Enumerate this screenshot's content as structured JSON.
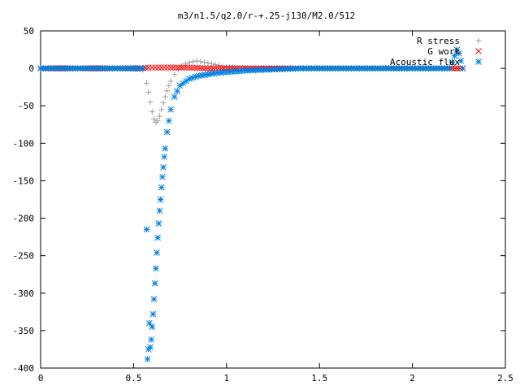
{
  "chart_data": {
    "type": "scatter",
    "title": "m3/n1.5/q2.0/r-+.25-j130/M2.0/512",
    "xlabel": "",
    "ylabel": "",
    "xlim": [
      0,
      2.5
    ],
    "ylim": [
      -400,
      50
    ],
    "xticks": [
      "0",
      "0.5",
      "1",
      "1.5",
      "2",
      "2.5"
    ],
    "yticks": [
      "50",
      "0",
      "-50",
      "-100",
      "-150",
      "-200",
      "-250",
      "-300",
      "-350",
      "-400"
    ],
    "xtick_values": [
      0,
      0.5,
      1,
      1.5,
      2,
      2.5
    ],
    "ytick_values": [
      50,
      0,
      -50,
      -100,
      -150,
      -200,
      -250,
      -300,
      -350,
      -400
    ],
    "grid": false,
    "legend_position": "top-right",
    "series": [
      {
        "name": "R stress",
        "marker": "+",
        "color": "#a0a0a0",
        "x": [
          0.0,
          0.1,
          0.2,
          0.3,
          0.4,
          0.5,
          0.55,
          0.57,
          0.58,
          0.59,
          0.6,
          0.61,
          0.62,
          0.63,
          0.64,
          0.65,
          0.66,
          0.67,
          0.68,
          0.69,
          0.7,
          0.72,
          0.74,
          0.76,
          0.78,
          0.8,
          0.82,
          0.84,
          0.86,
          0.88,
          0.9,
          0.92,
          0.94,
          0.96,
          0.98,
          1.0,
          1.05,
          1.1,
          1.2,
          1.3,
          1.4,
          1.5,
          1.6,
          1.7,
          1.8,
          1.9,
          2.0,
          2.1,
          2.2,
          2.25
        ],
        "y": [
          0,
          0,
          0,
          0,
          0,
          0,
          -2,
          -20,
          -32,
          -45,
          -58,
          -68,
          -72,
          -70,
          -64,
          -55,
          -46,
          -38,
          -30,
          -23,
          -17,
          -8,
          -2,
          3,
          6,
          8,
          9,
          10,
          9,
          8,
          7,
          6,
          5,
          4,
          3,
          2,
          1,
          0,
          0,
          0,
          0,
          0,
          0,
          0,
          0,
          0,
          0,
          0,
          0,
          0
        ]
      },
      {
        "name": "G work",
        "marker": "x",
        "color": "#ff0000",
        "x": [
          0.0,
          0.2,
          0.4,
          0.55,
          0.58,
          0.6,
          0.65,
          0.7,
          0.8,
          0.9,
          1.0,
          1.1,
          1.2,
          1.3,
          1.4,
          1.5,
          1.6,
          1.7,
          1.8,
          1.9,
          2.0,
          2.1,
          2.2,
          2.27
        ],
        "y": [
          0,
          0,
          0,
          0,
          1,
          1,
          1,
          1,
          1,
          0,
          0,
          0,
          0,
          0,
          0,
          0,
          0,
          0,
          0,
          0,
          0,
          0,
          0,
          0
        ]
      },
      {
        "name": "Acoustic flux",
        "marker": "*",
        "color": "#0080e0",
        "x": [
          0.0,
          0.1,
          0.2,
          0.3,
          0.4,
          0.5,
          0.55,
          0.57,
          0.575,
          0.58,
          0.585,
          0.59,
          0.595,
          0.6,
          0.605,
          0.61,
          0.615,
          0.62,
          0.625,
          0.63,
          0.635,
          0.64,
          0.645,
          0.65,
          0.655,
          0.66,
          0.665,
          0.67,
          0.68,
          0.69,
          0.7,
          0.72,
          0.75,
          0.8,
          0.85,
          0.9,
          0.95,
          1.0,
          1.05,
          1.1,
          1.2,
          1.3,
          1.4,
          1.5,
          1.6,
          1.7,
          1.8,
          1.9,
          2.0,
          2.1,
          2.2,
          2.24,
          2.25,
          2.26,
          2.27
        ],
        "y": [
          0,
          0,
          0,
          0,
          0,
          0,
          0,
          -215,
          -388,
          -375,
          -340,
          -372,
          -362,
          -345,
          -328,
          -308,
          -287,
          -267,
          -246,
          -226,
          -207,
          -190,
          -175,
          -159,
          -145,
          -132,
          -118,
          -107,
          -85,
          -70,
          -55,
          -38,
          -23,
          -14,
          -10,
          -8,
          -6,
          -5,
          -4,
          -3,
          -2,
          -1,
          0,
          0,
          0,
          0,
          0,
          0,
          0,
          0,
          0,
          25,
          20,
          10,
          0
        ]
      }
    ]
  }
}
